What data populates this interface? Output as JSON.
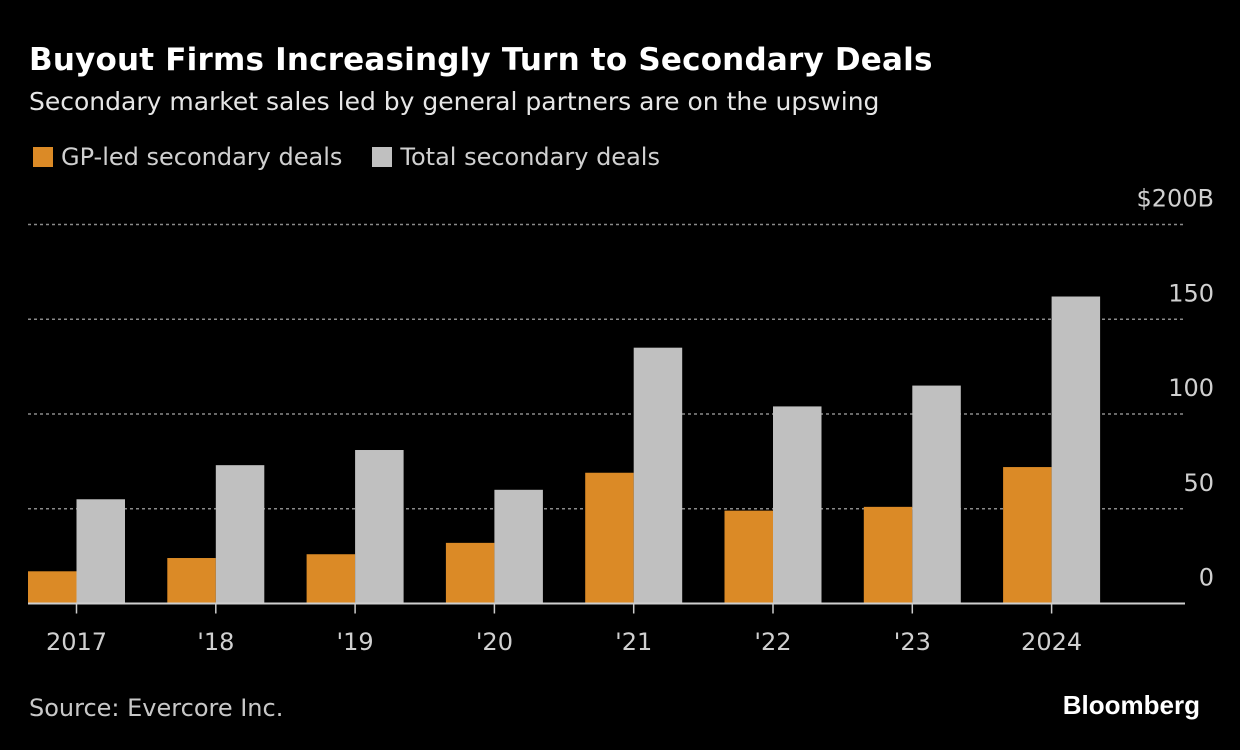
{
  "title": "Buyout Firms Increasingly Turn to Secondary Deals",
  "subtitle": "Secondary market sales led by general partners are on the upswing",
  "source": "Source: Evercore Inc.",
  "brand": "Bloomberg",
  "chart_data": {
    "type": "bar",
    "categories": [
      "2017",
      "'18",
      "'19",
      "'20",
      "'21",
      "'22",
      "'23",
      "2024"
    ],
    "series": [
      {
        "name": "GP-led secondary deals",
        "color": "#db8a26",
        "values": [
          17,
          24,
          26,
          32,
          69,
          49,
          51,
          72
        ]
      },
      {
        "name": "Total secondary deals",
        "color": "#c0c0c0",
        "values": [
          55,
          73,
          81,
          60,
          135,
          104,
          115,
          162
        ]
      }
    ],
    "yticks": [
      {
        "value": 0,
        "label": "0"
      },
      {
        "value": 50,
        "label": "50"
      },
      {
        "value": 100,
        "label": "100"
      },
      {
        "value": 150,
        "label": "150"
      },
      {
        "value": 200,
        "label": "$200B"
      }
    ],
    "ylim": [
      0,
      200
    ],
    "yaxis_position": "right",
    "grid": true,
    "legend": "top-left"
  }
}
